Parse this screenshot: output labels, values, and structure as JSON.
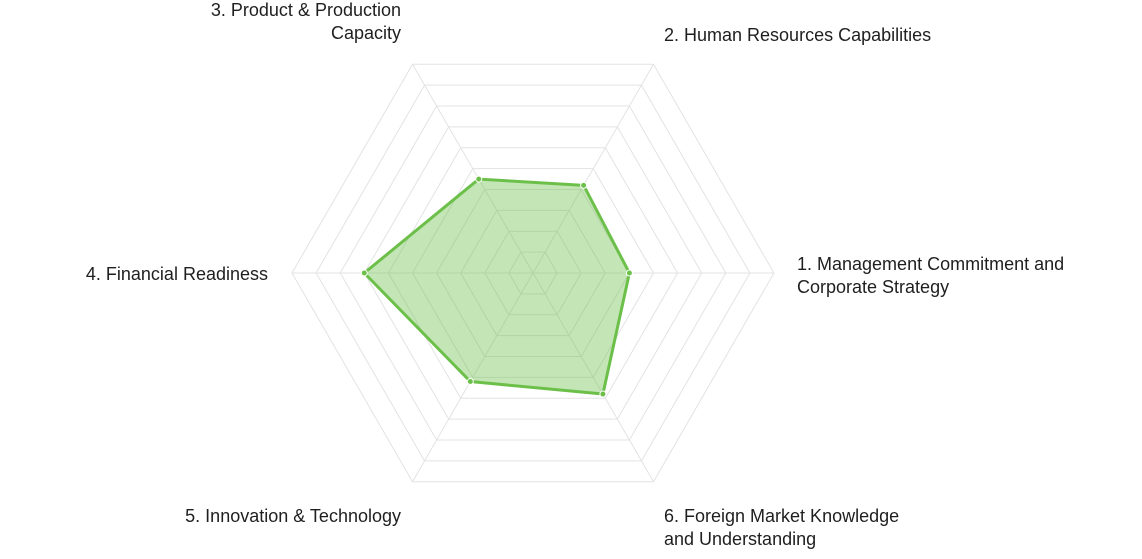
{
  "chart_data": {
    "type": "radar",
    "title": "",
    "axes": [
      "1. Management Commitment and Corporate Strategy",
      "2. Human Resources Capabilities",
      "3. Product & Production Capacity",
      "4. Financial Readiness",
      "5. Innovation & Technology",
      "6. Foreign Market Knowledge and Understanding"
    ],
    "axis_label_lines": [
      [
        "1. Management Commitment and",
        "Corporate Strategy"
      ],
      [
        "2. Human Resources Capabilities"
      ],
      [
        "3. Product & Production",
        "Capacity"
      ],
      [
        "4. Financial Readiness"
      ],
      [
        "5. Innovation & Technology"
      ],
      [
        "6. Foreign Market Knowledge",
        "and Understanding"
      ]
    ],
    "rmax": 10,
    "grid_levels": 10,
    "grid": true,
    "legend": "none",
    "series": [
      {
        "values": [
          4.0,
          4.2,
          4.5,
          7.0,
          5.2,
          5.8
        ],
        "color": "#6cc04a",
        "fill": "rgba(108,192,74,0.4)"
      }
    ]
  }
}
